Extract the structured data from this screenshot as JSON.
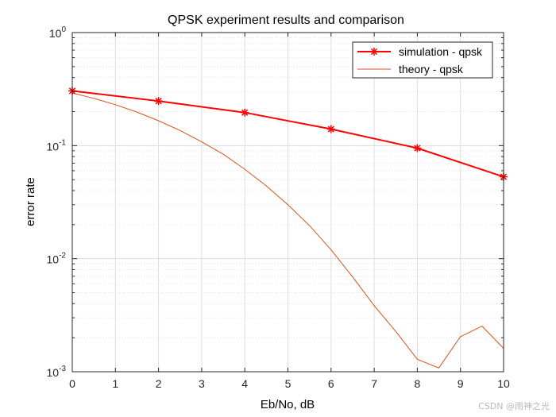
{
  "chart_data": {
    "type": "line",
    "title": "QPSK experiment results and comparison",
    "xlabel": "Eb/No, dB",
    "ylabel": "error rate",
    "xlim": [
      0,
      10
    ],
    "ylim": [
      0.001,
      1
    ],
    "yscale": "log",
    "xticks": [
      "0",
      "1",
      "2",
      "3",
      "4",
      "5",
      "6",
      "7",
      "8",
      "9",
      "10"
    ],
    "yticks": [
      {
        "base": "10",
        "exp": "0",
        "value": 1
      },
      {
        "base": "10",
        "exp": "-1",
        "value": 0.1
      },
      {
        "base": "10",
        "exp": "-2",
        "value": 0.01
      },
      {
        "base": "10",
        "exp": "-3",
        "value": 0.001
      }
    ],
    "grid": true,
    "legend_position": "top-right",
    "series": [
      {
        "name": "simulation - qpsk",
        "color": "#ff0000",
        "marker": "asterisk",
        "x": [
          0,
          2,
          4,
          6,
          8,
          10
        ],
        "y": [
          0.305,
          0.248,
          0.196,
          0.14,
          0.095,
          0.053
        ]
      },
      {
        "name": "theory - qpsk",
        "color": "#d95319",
        "marker": "none",
        "x": [
          0,
          0.5,
          1,
          1.5,
          2,
          2.5,
          3,
          3.5,
          4,
          4.5,
          5,
          5.5,
          6,
          6.5,
          7,
          7.5,
          8,
          8.5,
          9,
          9.5,
          10
        ],
        "y": [
          0.292,
          0.262,
          0.23,
          0.198,
          0.166,
          0.136,
          0.108,
          0.084,
          0.0618,
          0.044,
          0.03,
          0.0196,
          0.012,
          0.0069,
          0.00384,
          0.00227,
          0.00129,
          0.00108,
          0.00204,
          0.00253,
          0.00161
        ]
      }
    ]
  },
  "watermark": "CSDN @雨神之光"
}
